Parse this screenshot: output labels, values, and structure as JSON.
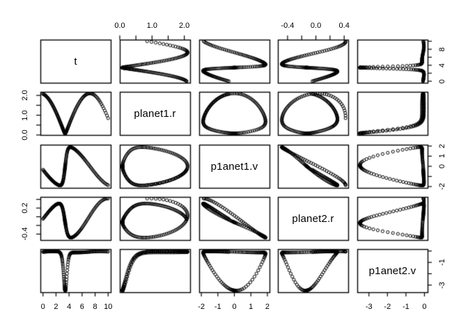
{
  "chart_data": {
    "type": "scatter",
    "subtype": "scatterplot-matrix",
    "title": "",
    "description": "R pairs() scatterplot matrix of a two-planet orbit simulation; open-circle markers, variables on the diagonal, axes alternating on top/bottom/left/right",
    "grid": false,
    "marker": {
      "shape": "circle-open",
      "radius": 2.1,
      "line_width": 1
    },
    "colors": {
      "background": "#ffffff",
      "stroke": "#000000",
      "text": "#000000"
    },
    "n_points": 150,
    "variables": [
      {
        "name": "t",
        "label": "t",
        "lim": [
          -0.4,
          10.4
        ],
        "hticks": [
          {
            "v": 0,
            "l": "0"
          },
          {
            "v": 2,
            "l": "2"
          },
          {
            "v": 4,
            "l": "4"
          },
          {
            "v": 6,
            "l": "6"
          },
          {
            "v": 8,
            "l": "8"
          },
          {
            "v": 10,
            "l": "10"
          }
        ],
        "vticks": [
          {
            "v": 0,
            "l": "0"
          },
          {
            "v": 2,
            "l": ""
          },
          {
            "v": 4,
            "l": "4"
          },
          {
            "v": 6,
            "l": ""
          },
          {
            "v": 8,
            "l": "8"
          },
          {
            "v": 10,
            "l": ""
          }
        ]
      },
      {
        "name": "planet1.r",
        "label": "planet1.r",
        "lim": [
          0.0,
          2.18
        ],
        "hticks": [
          {
            "v": 0,
            "l": "0.0"
          },
          {
            "v": 0.5,
            "l": ""
          },
          {
            "v": 1,
            "l": "1.0"
          },
          {
            "v": 1.5,
            "l": ""
          },
          {
            "v": 2,
            "l": "2.0"
          }
        ],
        "vticks": [
          {
            "v": 0,
            "l": "0.0"
          },
          {
            "v": 0.5,
            "l": ""
          },
          {
            "v": 1,
            "l": "1.0"
          },
          {
            "v": 1.5,
            "l": ""
          },
          {
            "v": 2,
            "l": "2.0"
          }
        ]
      },
      {
        "name": "p1anet1.v",
        "label": "p1anet1.v",
        "lim": [
          -2.13,
          2.13
        ],
        "hticks": [
          {
            "v": -2,
            "l": "-2"
          },
          {
            "v": -1,
            "l": "-1"
          },
          {
            "v": 0,
            "l": "0"
          },
          {
            "v": 1,
            "l": "1"
          },
          {
            "v": 2,
            "l": "2"
          }
        ],
        "vticks": [
          {
            "v": -2,
            "l": "-2"
          },
          {
            "v": -1,
            "l": ""
          },
          {
            "v": 0,
            "l": "0"
          },
          {
            "v": 1,
            "l": "1"
          },
          {
            "v": 2,
            "l": "2"
          }
        ]
      },
      {
        "name": "planet2.r",
        "label": "planet2.r",
        "lim": [
          -0.537,
          0.457
        ],
        "hticks": [
          {
            "v": -0.4,
            "l": "-0.4"
          },
          {
            "v": -0.2,
            "l": ""
          },
          {
            "v": 0,
            "l": "0.0"
          },
          {
            "v": 0.2,
            "l": ""
          },
          {
            "v": 0.4,
            "l": "0.4"
          }
        ],
        "vticks": [
          {
            "v": -0.4,
            "l": "-0.4"
          },
          {
            "v": -0.2,
            "l": ""
          },
          {
            "v": 0,
            "l": ""
          },
          {
            "v": 0.2,
            "l": "0.2"
          },
          {
            "v": 0.4,
            "l": ""
          }
        ]
      },
      {
        "name": "p1anet2.v",
        "label": "p1anet2.v",
        "lim": [
          -3.63,
          0.17
        ],
        "hticks": [
          {
            "v": -3,
            "l": "-3"
          },
          {
            "v": -2,
            "l": "-2"
          },
          {
            "v": -1,
            "l": "-1"
          },
          {
            "v": 0,
            "l": "0"
          }
        ],
        "vticks": [
          {
            "v": -3,
            "l": "-3"
          },
          {
            "v": -2,
            "l": ""
          },
          {
            "v": -1,
            "l": "-1"
          },
          {
            "v": 0,
            "l": ""
          }
        ]
      }
    ],
    "axis_sides": {
      "top_cols": [
        1,
        3
      ],
      "bottom_cols": [
        0,
        2,
        4
      ],
      "left_rows": [
        1,
        3
      ],
      "right_rows": [
        0,
        2,
        4
      ]
    },
    "generator": {
      "t0": 3.4,
      "T": 7.6,
      "t_max": 10,
      "warp_pow": 2,
      "r1_amp": 2.1,
      "r1_eps": 0.0016,
      "v1_amp": 2.05,
      "v1_tanh": 0.15,
      "r2_pre_amp": 0.33,
      "r2_pre_freq": 0.582,
      "r2_pre_phase": -0.15,
      "r2_post_base": -0.5,
      "r2_post_amp": 0.92,
      "r2_post_freq": 0.26,
      "r2_post_t0": 3.9,
      "blend_t": 3.35,
      "blend_w": 0.22,
      "v2_base": -0.08,
      "v2_dip": 3.41,
      "v2_t0": 3.42,
      "v2_w": 0.33,
      "v2_wiggle_amp": 0.05,
      "v2_wiggle_freq": 0.9
    }
  }
}
